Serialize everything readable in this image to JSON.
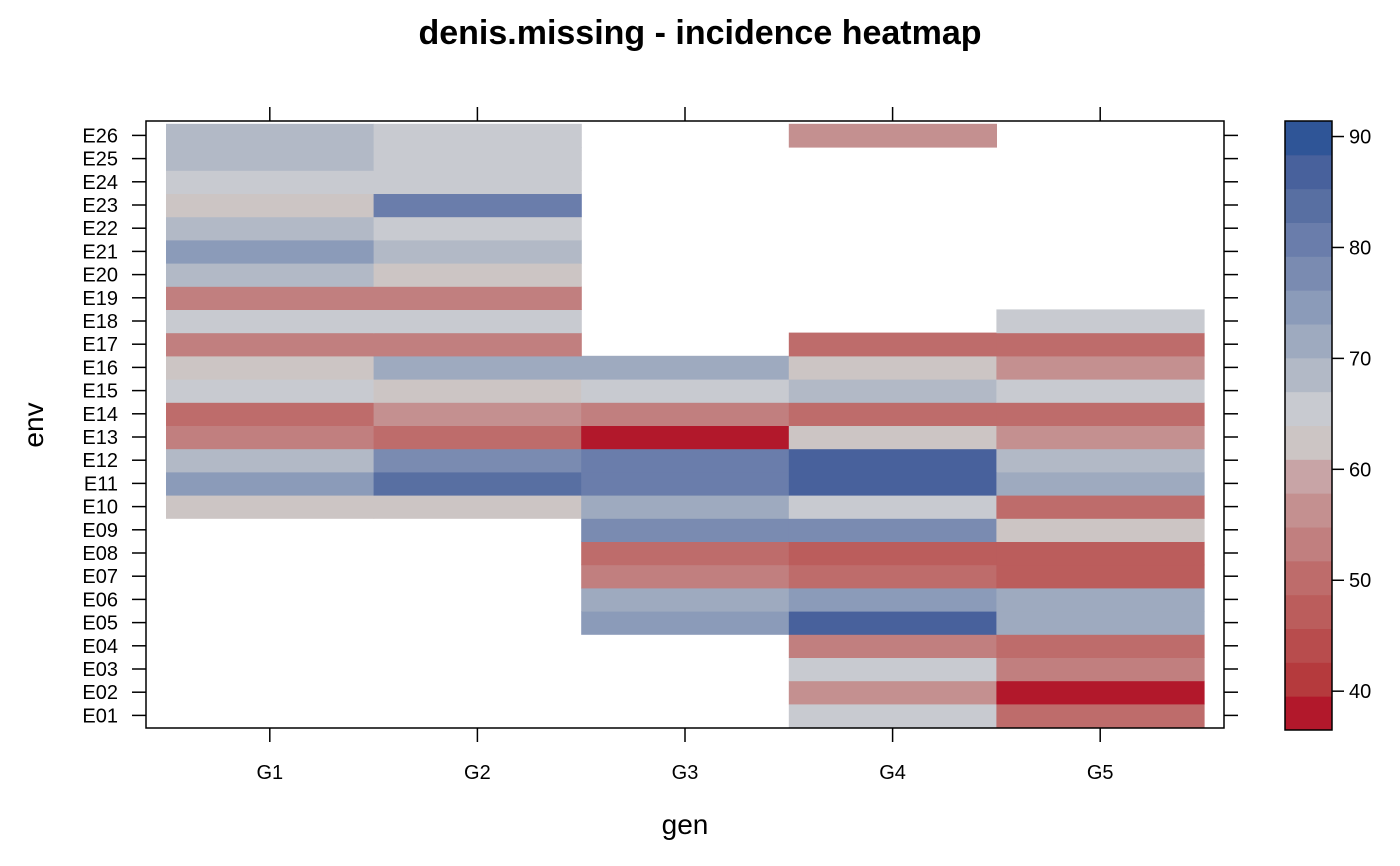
{
  "chart_data": {
    "type": "heatmap",
    "title": "denis.missing - incidence heatmap",
    "xlabel": "gen",
    "ylabel": "env",
    "x_categories": [
      "G1",
      "G2",
      "G3",
      "G4",
      "G5"
    ],
    "y_categories": [
      "E01",
      "E02",
      "E03",
      "E04",
      "E05",
      "E06",
      "E07",
      "E08",
      "E09",
      "E10",
      "E11",
      "E12",
      "E13",
      "E14",
      "E15",
      "E16",
      "E17",
      "E18",
      "E19",
      "E20",
      "E21",
      "E22",
      "E23",
      "E24",
      "E25",
      "E26"
    ],
    "values": [
      [
        null,
        null,
        null,
        65,
        49
      ],
      [
        null,
        null,
        null,
        57,
        37
      ],
      [
        null,
        null,
        null,
        65,
        53
      ],
      [
        null,
        null,
        null,
        54,
        51
      ],
      [
        null,
        null,
        76,
        86,
        73
      ],
      [
        null,
        null,
        73,
        76,
        73
      ],
      [
        null,
        null,
        54,
        49,
        47
      ],
      [
        null,
        null,
        51,
        48,
        47
      ],
      [
        null,
        null,
        78,
        78,
        62
      ],
      [
        62,
        62,
        73,
        65,
        51
      ],
      [
        74,
        83,
        82,
        88,
        73
      ],
      [
        70,
        77,
        81,
        86,
        70
      ],
      [
        53,
        50,
        37,
        62,
        56
      ],
      [
        50,
        57,
        54,
        51,
        51
      ],
      [
        66,
        62,
        66,
        70,
        66
      ],
      [
        61,
        72,
        72,
        62,
        57
      ],
      [
        53,
        53,
        null,
        51,
        51
      ],
      [
        66,
        66,
        null,
        null,
        66
      ],
      [
        54,
        54,
        null,
        null,
        null
      ],
      [
        70,
        61,
        null,
        null,
        null
      ],
      [
        74,
        70,
        null,
        null,
        null
      ],
      [
        70,
        66,
        null,
        null,
        null
      ],
      [
        62,
        80,
        null,
        null,
        null
      ],
      [
        66,
        66,
        null,
        null,
        null
      ],
      [
        70,
        66,
        null,
        null,
        null
      ],
      [
        70,
        66,
        null,
        57,
        null
      ]
    ],
    "colorbar": {
      "min": 36.5,
      "max": 91.4,
      "ticks": [
        40,
        50,
        60,
        70,
        80,
        90
      ],
      "colors": [
        "#B2182B",
        "#B53A3D",
        "#B84C4D",
        "#BB5D5C",
        "#BE6C6B",
        "#C17F7F",
        "#C49090",
        "#C8A4A6",
        "#CCC5C4",
        "#C8CAD0",
        "#B2B9C6",
        "#9EAABF",
        "#8B9BB9",
        "#7A8BB1",
        "#6A7DAB",
        "#586FA2",
        "#48619C",
        "#2F5597"
      ]
    },
    "grid": false,
    "legend_position": "right"
  }
}
